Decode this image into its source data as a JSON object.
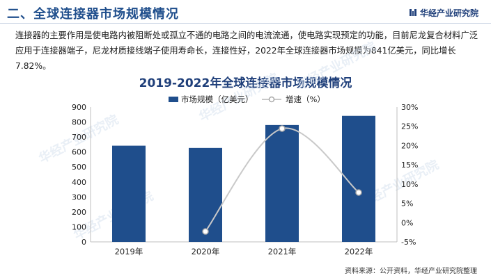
{
  "header": {
    "title": "二、全球连接器市场规模情况",
    "brand": "华经产业研究院"
  },
  "intro": "连接器的主要作用是使电路内被阻断处或孤立不通的电路之间的电流流通，使电路实现预定的功能，目前尼龙复合材料广泛应用于连接器端子，尼龙材质接线端子使用寿命长，连接性好，2022年全球连接器市场规模为841亿美元，同比增长7.82%。",
  "watermark": "华经产业研究院",
  "source": "资料来源：公开资料，华经产业研究院整理",
  "colors": {
    "bar": "#1f4e8c",
    "line": "#c9c9c9",
    "marker_fill": "#ffffff",
    "marker_stroke": "#a9a9a9",
    "title": "#1f3f7a"
  },
  "chart_data": {
    "type": "bar",
    "title": "2019-2022年全球连接器市场规模情况",
    "categories": [
      "2019年",
      "2020年",
      "2021年",
      "2022年"
    ],
    "series": [
      {
        "name": "市场规模（亿美元）",
        "type": "bar",
        "axis": "left",
        "values": [
          642,
          627,
          780,
          841
        ]
      },
      {
        "name": "增速（%）",
        "type": "line",
        "axis": "right",
        "values": [
          null,
          -2.3,
          24.4,
          7.82
        ]
      }
    ],
    "y_left": {
      "min": 0,
      "max": 900,
      "ticks": [
        "0",
        "100",
        "200",
        "300",
        "400",
        "500",
        "600",
        "700",
        "800",
        "900"
      ]
    },
    "y_right": {
      "min": -5,
      "max": 30,
      "ticks": [
        "-5%",
        "0%",
        "5%",
        "10%",
        "15%",
        "20%",
        "25%",
        "30%"
      ]
    },
    "legend_position": "top-center",
    "grid": false
  }
}
